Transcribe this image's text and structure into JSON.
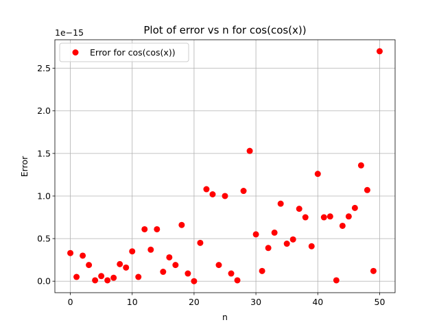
{
  "chart_data": {
    "type": "scatter",
    "title": "Plot of error vs n for cos(cos(x))",
    "xlabel": "n",
    "ylabel": "Error",
    "offset_label": "1e−15",
    "xlim": [
      -2.5,
      52.5
    ],
    "ylim": [
      -0.135,
      2.835
    ],
    "y_scale_note": "values in units of 1e-15",
    "xticks": [
      0,
      10,
      20,
      30,
      40,
      50
    ],
    "yticks": [
      0.0,
      0.5,
      1.0,
      1.5,
      2.0,
      2.5
    ],
    "ytick_labels": [
      "0.0",
      "0.5",
      "1.0",
      "1.5",
      "2.0",
      "2.5"
    ],
    "grid": true,
    "legend_position": "top-left",
    "series": [
      {
        "name": "Error for cos(cos(x))",
        "color": "#ff0000",
        "marker": "circle",
        "x": [
          0,
          1,
          2,
          3,
          4,
          5,
          6,
          7,
          8,
          9,
          10,
          11,
          12,
          13,
          14,
          15,
          16,
          17,
          18,
          19,
          20,
          21,
          22,
          23,
          24,
          25,
          26,
          27,
          28,
          29,
          30,
          31,
          32,
          33,
          34,
          35,
          36,
          37,
          38,
          39,
          40,
          41,
          42,
          43,
          44,
          45,
          46,
          47,
          48,
          49,
          50
        ],
        "y": [
          0.33,
          0.05,
          0.3,
          0.19,
          0.01,
          0.06,
          0.01,
          0.04,
          0.2,
          0.16,
          0.35,
          0.05,
          0.61,
          0.37,
          0.61,
          0.11,
          0.28,
          0.19,
          0.66,
          0.09,
          0.0,
          0.45,
          1.08,
          1.02,
          0.19,
          1.0,
          0.09,
          0.01,
          1.06,
          1.53,
          0.55,
          0.12,
          0.39,
          0.57,
          0.91,
          0.44,
          0.49,
          0.85,
          0.75,
          0.41,
          1.26,
          0.75,
          0.76,
          0.01,
          0.65,
          0.76,
          0.86,
          1.36,
          1.07,
          0.12,
          2.7
        ]
      }
    ]
  }
}
